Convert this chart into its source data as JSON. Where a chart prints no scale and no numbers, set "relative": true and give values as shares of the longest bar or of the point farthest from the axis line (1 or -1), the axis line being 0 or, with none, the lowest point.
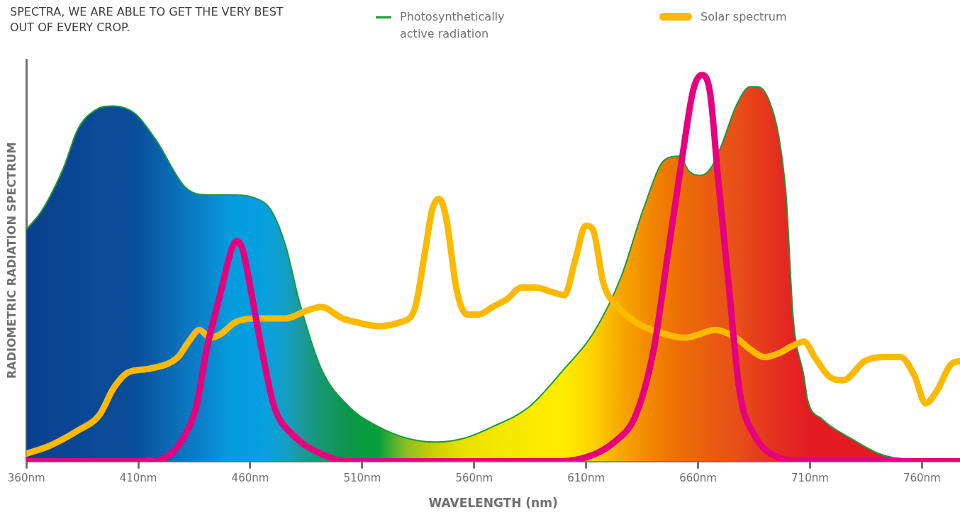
{
  "chart_data": {
    "type": "line",
    "title": "SPECTRA, WE ARE ABLE TO GET THE VERY BEST OUT OF EVERY CROP.",
    "xlabel": "WAVELENGTH (nm)",
    "ylabel": "RADIOMETRIC RADIATION SPECTRUM",
    "relative": true,
    "legend": "top right",
    "grid": false,
    "marker": "none",
    "xlim": [
      360,
      777
    ],
    "xticks": [
      {
        "value": 360,
        "label": "360nm"
      },
      {
        "value": 410,
        "label": "410nm"
      },
      {
        "value": 460,
        "label": "460nm"
      },
      {
        "value": 510,
        "label": "510nm"
      },
      {
        "value": 560,
        "label": "560nm"
      },
      {
        "value": 610,
        "label": "610nm"
      },
      {
        "value": 660,
        "label": "660nm"
      },
      {
        "value": 710,
        "label": "710nm"
      },
      {
        "value": 760,
        "label": "760nm"
      }
    ],
    "series": [
      {
        "name": "Photosynthetically active radiation",
        "type": "area",
        "color": "#1a9a3a",
        "x": [
          360,
          367.0,
          376.6,
          383.0,
          391.0,
          399.0,
          408.6,
          418.1,
          430.9,
          440.5,
          450.1,
          462.9,
          469.3,
          475.7,
          482.1,
          491.7,
          504.4,
          517.2,
          530.0,
          542.8,
          555.5,
          568.3,
          584.3,
          600.3,
          613.0,
          625.8,
          635.4,
          645.0,
          651.4,
          656.2,
          661.0,
          665.8,
          670.6,
          677.0,
          683.3,
          686.5,
          691.3,
          696.1,
          699.3,
          702.5,
          707.3,
          708.9,
          715.3,
          728.1,
          740.8,
          747.2,
          777
        ],
        "values": [
          0.6,
          0.65,
          0.76,
          0.86,
          0.91,
          0.92,
          0.9,
          0.83,
          0.71,
          0.69,
          0.69,
          0.68,
          0.65,
          0.56,
          0.41,
          0.24,
          0.14,
          0.09,
          0.06,
          0.05,
          0.06,
          0.09,
          0.14,
          0.24,
          0.33,
          0.48,
          0.65,
          0.78,
          0.79,
          0.75,
          0.74,
          0.76,
          0.82,
          0.92,
          0.97,
          0.97,
          0.94,
          0.84,
          0.69,
          0.37,
          0.22,
          0.16,
          0.11,
          0.06,
          0.02,
          0.01,
          0.0
        ],
        "colors": [
          "#0a3f8f",
          "#0a428f",
          "#0a4592",
          "#0a4795",
          "#0a4a97",
          "#0a4b98",
          "#0a4e9a",
          "#0a5ea8",
          "#0a75bf",
          "#0a85cc",
          "#059bdd",
          "#059fe0",
          "#0ba0d8",
          "#139fc4",
          "#1d9aa0",
          "#159870",
          "#0c9648",
          "#05a03a",
          "#8fbf20",
          "#cfd000",
          "#e8e100",
          "#f2e600",
          "#fbea00",
          "#ffec00",
          "#fcd200",
          "#f7a600",
          "#f29000",
          "#ef7a00",
          "#ed6e05",
          "#eb680a",
          "#ea620e",
          "#e95c12",
          "#e85616",
          "#e8501a",
          "#e7441b",
          "#e63e1c",
          "#e5361e",
          "#e42d20",
          "#e42822",
          "#e42423",
          "#e31f23",
          "#e31b23",
          "#e31b23",
          "#e31b23",
          "#e31b23",
          "#e31b23",
          "#e31b23"
        ]
      },
      {
        "name": "Solar spectrum",
        "type": "line",
        "color": "#fbb900",
        "x": [
          360,
          370.2,
          383.0,
          392.6,
          399.0,
          405.4,
          415.0,
          427.7,
          432.5,
          437.3,
          442.1,
          446.9,
          453.3,
          462.9,
          475.7,
          485.2,
          491.6,
          501.2,
          507.6,
          517.2,
          526.8,
          533.2,
          538.0,
          541.2,
          544.4,
          547.5,
          552.3,
          557.1,
          561.9,
          568.3,
          574.7,
          581.1,
          587.5,
          593.9,
          600.3,
          605.1,
          609.8,
          613.0,
          617.8,
          624.2,
          632.2,
          645.0,
          654.6,
          661.0,
          667.4,
          677.0,
          683.3,
          689.7,
          696.1,
          702.5,
          707.3,
          712.1,
          718.5,
          724.9,
          734.5,
          744.0,
          750.4,
          756.8,
          761.6,
          766.4,
          772.8,
          777
        ],
        "values": [
          0.02,
          0.04,
          0.08,
          0.12,
          0.19,
          0.23,
          0.24,
          0.27,
          0.31,
          0.34,
          0.32,
          0.33,
          0.36,
          0.37,
          0.37,
          0.39,
          0.4,
          0.37,
          0.36,
          0.35,
          0.36,
          0.39,
          0.54,
          0.65,
          0.68,
          0.63,
          0.44,
          0.38,
          0.38,
          0.4,
          0.42,
          0.45,
          0.45,
          0.44,
          0.43,
          0.52,
          0.61,
          0.6,
          0.46,
          0.4,
          0.36,
          0.33,
          0.32,
          0.33,
          0.34,
          0.32,
          0.29,
          0.27,
          0.28,
          0.3,
          0.31,
          0.27,
          0.22,
          0.21,
          0.26,
          0.27,
          0.27,
          0.22,
          0.15,
          0.18,
          0.25,
          0.26
        ]
      },
      {
        "type": "line",
        "color": "#e5007e",
        "x": [
          360,
          415.0,
          424.6,
          431.0,
          435.8,
          440.5,
          446.9,
          451.7,
          453.9,
          456.5,
          461.3,
          466.1,
          470.8,
          478.8,
          491.6,
          504.4,
          517.2,
          593.9,
          609.8,
          622.6,
          632.2,
          640.2,
          646.6,
          653.0,
          657.8,
          661.6,
          665.2,
          669.0,
          673.8,
          678.6,
          685.0,
          696.1,
          708.9,
          777
        ],
        "values": [
          0,
          0,
          0.02,
          0.07,
          0.14,
          0.29,
          0.44,
          0.55,
          0.57,
          0.55,
          0.41,
          0.26,
          0.14,
          0.07,
          0.02,
          0.0,
          0,
          0,
          0.01,
          0.05,
          0.12,
          0.29,
          0.54,
          0.79,
          0.96,
          1,
          0.96,
          0.73,
          0.45,
          0.18,
          0.07,
          0.01,
          0,
          0
        ]
      }
    ]
  }
}
